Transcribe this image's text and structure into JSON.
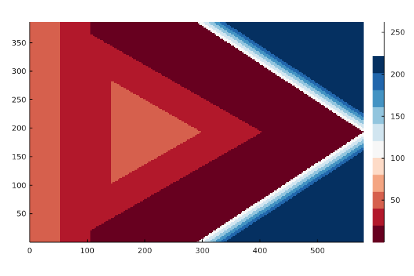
{
  "chart_data": {
    "type": "heatmap",
    "title": "",
    "xlabel": "",
    "ylabel": "",
    "xlim": [
      0,
      580
    ],
    "ylim": [
      0,
      386
    ],
    "grid": false,
    "x_ticks": [
      {
        "value": 0,
        "label": "0"
      },
      {
        "value": 100,
        "label": "100"
      },
      {
        "value": 200,
        "label": "200"
      },
      {
        "value": 300,
        "label": "300"
      },
      {
        "value": 400,
        "label": "400"
      },
      {
        "value": 500,
        "label": "500"
      }
    ],
    "y_ticks": [
      {
        "value": 50,
        "label": "50"
      },
      {
        "value": 100,
        "label": "100"
      },
      {
        "value": 150,
        "label": "150"
      },
      {
        "value": 200,
        "label": "200"
      },
      {
        "value": 250,
        "label": "250"
      },
      {
        "value": 300,
        "label": "300"
      },
      {
        "value": 350,
        "label": "350"
      }
    ],
    "colorbar": {
      "colormap": "RdBu",
      "range": [
        0,
        262
      ],
      "levels": [
        0,
        20.15,
        40.3,
        60.45,
        80.6,
        100.75,
        120.9,
        141.05,
        161.2,
        181.35,
        201.5,
        221.65,
        241.8,
        262
      ],
      "colors": [
        "#67001f",
        "#b2182b",
        "#d6604d",
        "#f4a582",
        "#fddbc7",
        "#f7f7f7",
        "#d1e5f0",
        "#92c5de",
        "#4393c3",
        "#2166ac",
        "#053061"
      ],
      "ticks": [
        {
          "value": 50,
          "label": "50"
        },
        {
          "value": 100,
          "label": "100"
        },
        {
          "value": 150,
          "label": "150"
        },
        {
          "value": 200,
          "label": "200"
        },
        {
          "value": 250,
          "label": "250"
        }
      ]
    },
    "field": {
      "description": "filled contour of a triangular pattern",
      "apex": [
        580,
        193
      ],
      "slope": 0.6655,
      "triangle_centroid": [
        193,
        193
      ],
      "band_width": 48.5,
      "triangle_bands": [
        {
          "triangle_base_x": 185,
          "triangle_apex_x": 244,
          "color": "#f4a582"
        },
        {
          "triangle_base_x": 165,
          "triangle_apex_x": 291,
          "color": "#d6604d"
        },
        {
          "triangle_base_x": 145,
          "triangle_apex_x": 338,
          "color": "#b2182b"
        },
        {
          "triangle_base_x": 121,
          "triangle_apex_x": 434,
          "color": "#67001f"
        }
      ]
    }
  }
}
